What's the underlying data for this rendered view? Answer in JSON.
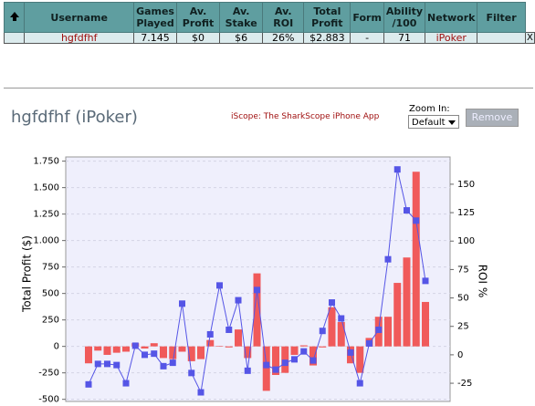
{
  "table": {
    "columns": [
      "Username",
      "Games Played",
      "Av. Profit",
      "Av. Stake",
      "Av. ROI",
      "Total Profit",
      "Form",
      "Ability /100",
      "Network",
      "Filter"
    ],
    "rows": [
      [
        "hgfdfhf",
        "7.145",
        "$0",
        "$6",
        "26%",
        "$2.883",
        "-",
        "71",
        "iPoker",
        "X"
      ]
    ]
  },
  "header": {
    "title": "hgfdfhf (iPoker)",
    "promo": "iScope: The SharkScope iPhone App",
    "zoom_label": "Zoom In:",
    "zoom_value": "Default",
    "button": "Remove"
  },
  "chart_data": {
    "type": "bar",
    "y_label": "Total Profit ($)",
    "y2_label": "ROI %",
    "ylim": [
      -520,
      1790
    ],
    "yticks": [
      -500,
      -250,
      0,
      250,
      500,
      750,
      {
        "value": 1000,
        "label": "1.000"
      },
      {
        "value": 1250,
        "label": "1.250"
      },
      {
        "value": 1500,
        "label": "1.500"
      },
      {
        "value": 1750,
        "label": "1.750"
      }
    ],
    "y2lim": [
      -41,
      174
    ],
    "y2ticks": [
      -25,
      0,
      25,
      50,
      75,
      100,
      125,
      150
    ],
    "grid": true,
    "series": [
      {
        "color": "#f05a5a",
        "values": [
          -160,
          -40,
          -80,
          -60,
          -50,
          30,
          -20,
          30,
          -110,
          -120,
          -50,
          -140,
          -120,
          60,
          5,
          -10,
          160,
          -110,
          690,
          -420,
          -270,
          -250,
          -80,
          10,
          -180,
          -10,
          370,
          230,
          -160,
          -250,
          80,
          280,
          280,
          600,
          840,
          1650,
          420
        ]
      },
      {
        "type": "line",
        "axis": "y2",
        "color": "#5555e6",
        "values": [
          -26,
          -8,
          -8,
          -9,
          -25,
          8,
          0,
          1,
          -10,
          -7,
          45,
          -16,
          -33,
          18,
          61,
          22,
          48,
          -14,
          57,
          -9,
          -13,
          -7,
          -4,
          3,
          -5,
          21,
          46,
          32,
          2,
          -25,
          10,
          22,
          84,
          163,
          127,
          118,
          65
        ]
      }
    ]
  }
}
